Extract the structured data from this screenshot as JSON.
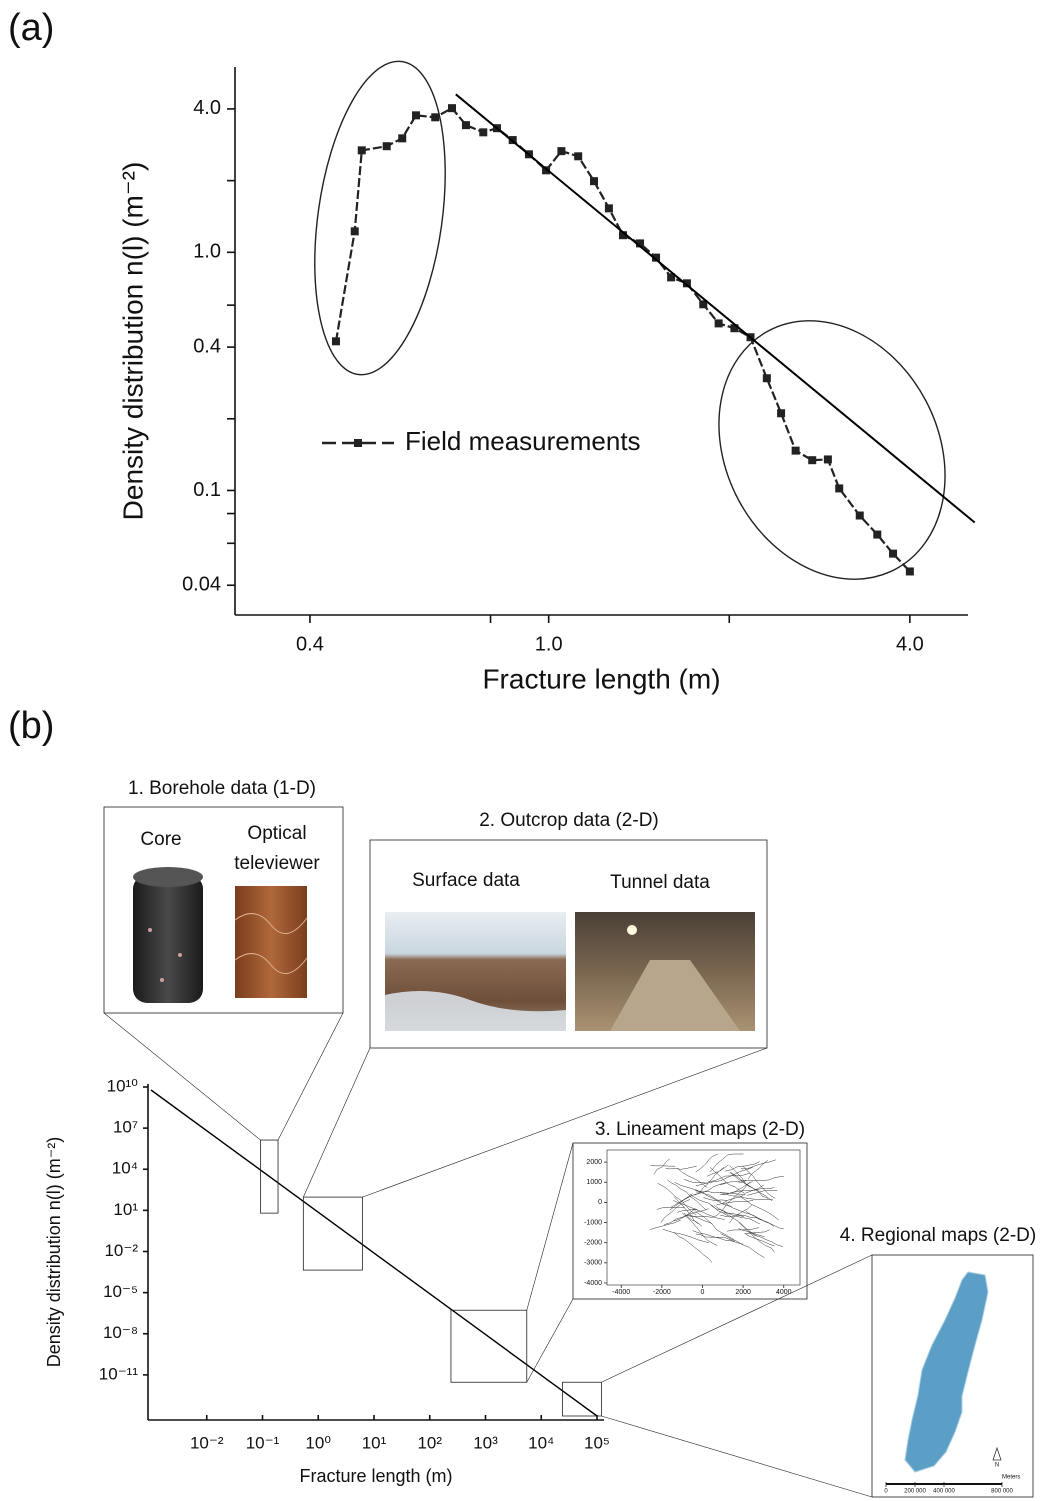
{
  "chart_data": [
    {
      "type": "line",
      "panel_label": "(a)",
      "xlabel": "Fracture length (m)",
      "ylabel": "Density distribution n(l) (m⁻²)",
      "xscale": "log",
      "yscale": "log",
      "xlim": [
        0.3,
        5
      ],
      "ylim": [
        0.03,
        6
      ],
      "xticks": [
        0.4,
        {
          "value": 1,
          "label": "1.0"
        },
        {
          "value": 4,
          "label": "4.0"
        }
      ],
      "xminorticks": [
        0.8,
        2
      ],
      "yticks": [
        {
          "value": 4,
          "label": "4.0"
        },
        {
          "value": 1,
          "label": "1.0"
        },
        0.4,
        0.1,
        0.04
      ],
      "yminorticks": [
        2,
        0.6,
        0.2,
        0.08,
        0.06
      ],
      "x": [
        0.442,
        0.475,
        0.488,
        0.537,
        0.57,
        0.601,
        0.647,
        0.69,
        0.728,
        0.778,
        0.82,
        0.871,
        0.927,
        0.99,
        1.05,
        1.12,
        1.19,
        1.26,
        1.33,
        1.42,
        1.51,
        1.6,
        1.7,
        1.81,
        1.92,
        2.04,
        2.17,
        2.31,
        2.44,
        2.58,
        2.75,
        2.92,
        3.05,
        3.3,
        3.53,
        3.75,
        4.0
      ],
      "series": [
        {
          "name": "Field measurements",
          "color": "#222222",
          "values": [
            0.423,
            1.225,
            2.68,
            2.79,
            3.01,
            3.76,
            3.69,
            4.03,
            3.42,
            3.19,
            3.32,
            2.96,
            2.58,
            2.21,
            2.66,
            2.53,
            1.99,
            1.53,
            1.18,
            1.09,
            0.95,
            0.785,
            0.741,
            0.605,
            0.503,
            0.48,
            0.44,
            0.296,
            0.211,
            0.147,
            0.134,
            0.135,
            0.102,
            0.0785,
            0.0653,
            0.0543,
            0.0457
          ]
        }
      ],
      "fit_line": {
        "x": [
          0.7,
          5.13
        ],
        "values": [
          4.61,
          0.0734
        ],
        "color": "#000000"
      },
      "legend": "center-left"
    },
    {
      "type": "line",
      "panel_label": "(b)",
      "xlabel": "Fracture length (m)",
      "ylabel": "Density distribution n(l) (m⁻²)",
      "xscale": "log",
      "yscale": "log",
      "xlim": [
        0.001,
        100000
      ],
      "ylim": [
        1e-14,
        10000000000.0
      ],
      "xticks": [
        {
          "value": 0.01,
          "label": "10⁻²"
        },
        {
          "value": 0.1,
          "label": "10⁻¹"
        },
        {
          "value": 1,
          "label": "10⁰"
        },
        {
          "value": 10,
          "label": "10¹"
        },
        {
          "value": 100,
          "label": "10²"
        },
        {
          "value": 1000,
          "label": "10³"
        },
        {
          "value": 10000,
          "label": "10⁴"
        },
        {
          "value": 100000,
          "label": "10⁵"
        }
      ],
      "yticks": [
        {
          "value": 10000000000.0,
          "label": "10¹⁰"
        },
        {
          "value": 10000000.0,
          "label": "10⁷"
        },
        {
          "value": 10000.0,
          "label": "10⁴"
        },
        {
          "value": 10,
          "label": "10¹"
        },
        {
          "value": 0.01,
          "label": "10⁻²"
        },
        {
          "value": 1e-05,
          "label": "10⁻⁵"
        },
        {
          "value": 1e-08,
          "label": "10⁻⁸"
        },
        {
          "value": 1e-11,
          "label": "10⁻¹¹"
        }
      ],
      "x": [
        0.001,
        100000
      ],
      "values": [
        6000000000.0,
        1e-14
      ],
      "color": "#000000",
      "data_sources": [
        {
          "title": "1. Borehole data (1-D)",
          "xrange": [
            0.092,
            0.19
          ],
          "yrange": [
            6.3,
            1350000
          ],
          "captions": [
            [
              "Core"
            ],
            [
              "Optical",
              "televiewer"
            ]
          ]
        },
        {
          "title": "2. Outcrop data (2-D)",
          "xrange": [
            0.54,
            6.2
          ],
          "yrange": [
            0.00044,
            93
          ],
          "captions": [
            [
              "Surface data"
            ],
            [
              "Tunnel data"
            ]
          ]
        },
        {
          "title": "3. Lineament maps (2-D)",
          "xrange": [
            240,
            5500
          ],
          "yrange": [
            2.9e-12,
            5.2e-07
          ]
        },
        {
          "title": "4. Regional maps (2-D)",
          "xrange": [
            24000,
            120000
          ],
          "yrange": [
            1e-14,
            2.9e-12
          ]
        }
      ],
      "lineament_map": {
        "xlim": [
          -4700,
          4800
        ],
        "ylim": [
          -4100,
          2600
        ],
        "xticks": [
          -4000,
          -2000,
          0,
          2000,
          4000
        ],
        "yticks": [
          2000,
          1000,
          0,
          -1000,
          -2000,
          -3000,
          -4000
        ]
      },
      "regional_map": {
        "scale_unit": "Meters",
        "north": "N",
        "scale_lim": [
          0,
          800000
        ],
        "scale_ticks": [
          0,
          {
            "value": 200000,
            "label": "200 000"
          },
          {
            "value": 400000,
            "label": "400 000"
          },
          {
            "value": 800000,
            "label": "800 000"
          }
        ]
      }
    }
  ]
}
